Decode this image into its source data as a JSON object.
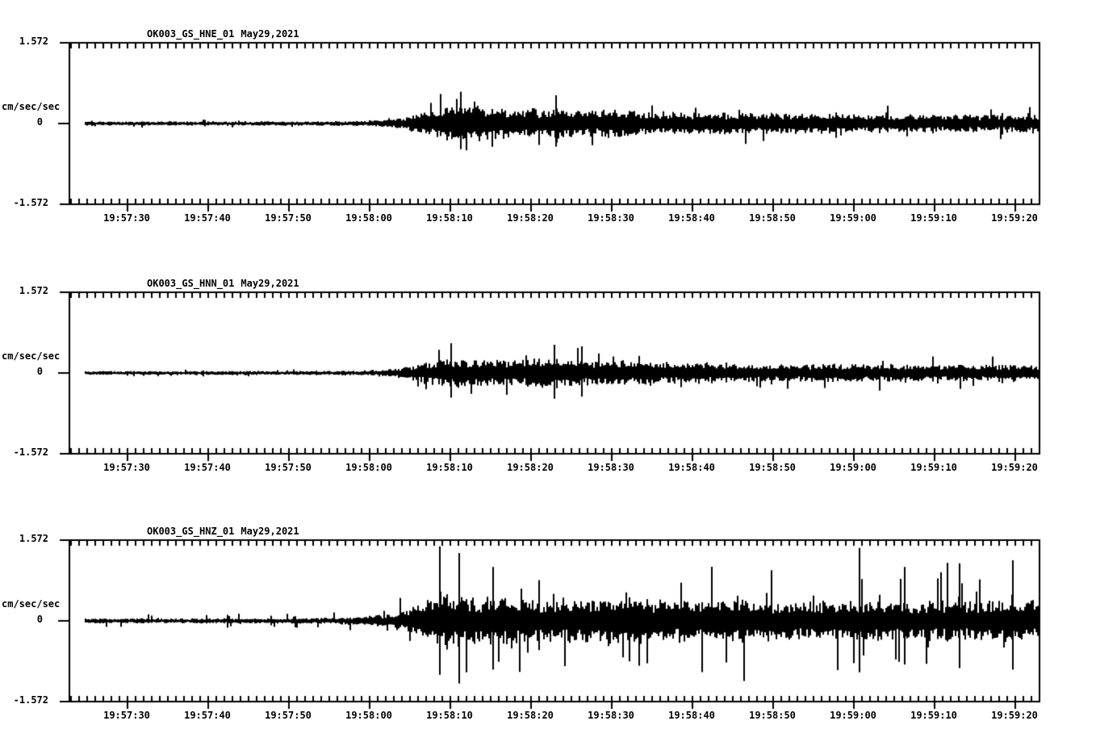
{
  "page": {
    "background": "#ffffff",
    "trace_color": "#000000",
    "axis_color": "#000000"
  },
  "chart_data": [
    {
      "type": "line",
      "kind": "seismogram",
      "title": "OK003_GS_HNE_01",
      "date": "May29,2021",
      "ylabel": "cm/sec/sec",
      "y_tick_labels": [
        "1.572",
        "0",
        "-1.572"
      ],
      "ylim": [
        -1.572,
        1.572
      ],
      "x_tick_labels": [
        "19:57:30",
        "19:57:40",
        "19:57:50",
        "19:58:00",
        "19:58:10",
        "19:58:20",
        "19:58:30",
        "19:58:40",
        "19:58:50",
        "19:59:00",
        "19:59:10",
        "19:59:20"
      ],
      "x_tick_interval_seconds": 10,
      "x_minor_tick_seconds": 1,
      "time_window": {
        "start": "19:57:23",
        "end": "19:59:23"
      },
      "seed": 101,
      "spike_ratio": 2.6,
      "spike_prob": 0.055,
      "envelope_body_amp": [
        [
          2,
          0.03
        ],
        [
          20,
          0.03
        ],
        [
          32,
          0.032
        ],
        [
          36,
          0.036
        ],
        [
          39,
          0.05
        ],
        [
          41,
          0.08
        ],
        [
          43,
          0.14
        ],
        [
          45,
          0.2
        ],
        [
          47,
          0.25
        ],
        [
          49,
          0.26
        ],
        [
          52,
          0.23
        ],
        [
          55,
          0.19
        ],
        [
          58,
          0.2
        ],
        [
          60,
          0.22
        ],
        [
          62,
          0.2
        ],
        [
          64,
          0.18
        ],
        [
          66,
          0.19
        ],
        [
          68,
          0.2
        ],
        [
          71,
          0.17
        ],
        [
          74,
          0.16
        ],
        [
          78,
          0.155
        ],
        [
          82,
          0.15
        ],
        [
          88,
          0.145
        ],
        [
          94,
          0.14
        ],
        [
          100,
          0.135
        ],
        [
          106,
          0.13
        ],
        [
          112,
          0.125
        ],
        [
          120.3,
          0.125
        ]
      ],
      "notable_peaks": [
        {
          "t": 48.5,
          "up": 0.62,
          "down": 0.5
        },
        {
          "t": 60.2,
          "up": 0.55,
          "down": 0.45
        }
      ]
    },
    {
      "type": "line",
      "kind": "seismogram",
      "title": "OK003_GS_HNN_01",
      "date": "May29,2021",
      "ylabel": "cm/sec/sec",
      "y_tick_labels": [
        "1.572",
        "0",
        "-1.572"
      ],
      "ylim": [
        -1.572,
        1.572
      ],
      "x_tick_labels": [
        "19:57:30",
        "19:57:40",
        "19:57:50",
        "19:58:00",
        "19:58:10",
        "19:58:20",
        "19:58:30",
        "19:58:40",
        "19:58:50",
        "19:59:00",
        "19:59:10",
        "19:59:20"
      ],
      "x_tick_interval_seconds": 10,
      "x_minor_tick_seconds": 1,
      "time_window": {
        "start": "19:57:23",
        "end": "19:59:23"
      },
      "seed": 202,
      "spike_ratio": 2.5,
      "spike_prob": 0.05,
      "envelope_body_amp": [
        [
          2,
          0.026
        ],
        [
          20,
          0.027
        ],
        [
          32,
          0.03
        ],
        [
          36,
          0.034
        ],
        [
          39,
          0.045
        ],
        [
          41,
          0.07
        ],
        [
          43,
          0.12
        ],
        [
          45,
          0.17
        ],
        [
          47,
          0.2
        ],
        [
          50,
          0.21
        ],
        [
          53,
          0.19
        ],
        [
          56,
          0.18
        ],
        [
          59,
          0.21
        ],
        [
          62,
          0.2
        ],
        [
          65,
          0.18
        ],
        [
          68,
          0.19
        ],
        [
          71,
          0.18
        ],
        [
          75,
          0.16
        ],
        [
          80,
          0.14
        ],
        [
          85,
          0.13
        ],
        [
          90,
          0.125
        ],
        [
          95,
          0.13
        ],
        [
          100,
          0.125
        ],
        [
          106,
          0.12
        ],
        [
          112,
          0.12
        ],
        [
          120.3,
          0.12
        ]
      ],
      "notable_peaks": [
        {
          "t": 47.2,
          "up": 0.58,
          "down": 0.48
        },
        {
          "t": 60.0,
          "up": 0.55,
          "down": 0.5
        },
        {
          "t": 63.5,
          "up": 0.52,
          "down": 0.46
        }
      ]
    },
    {
      "type": "line",
      "kind": "seismogram",
      "title": "OK003_GS_HNZ_01",
      "date": "May29,2021",
      "ylabel": "cm/sec/sec",
      "y_tick_labels": [
        "1.572",
        "0",
        "-1.572"
      ],
      "ylim": [
        -1.572,
        1.572
      ],
      "x_tick_labels": [
        "19:57:30",
        "19:57:40",
        "19:57:50",
        "19:58:00",
        "19:58:10",
        "19:58:20",
        "19:58:30",
        "19:58:40",
        "19:58:50",
        "19:59:00",
        "19:59:10",
        "19:59:20"
      ],
      "x_tick_interval_seconds": 10,
      "x_minor_tick_seconds": 1,
      "time_window": {
        "start": "19:57:23",
        "end": "19:59:23"
      },
      "seed": 303,
      "spike_ratio": 3.6,
      "spike_prob": 0.085,
      "envelope_body_amp": [
        [
          2,
          0.034
        ],
        [
          20,
          0.035
        ],
        [
          30,
          0.04
        ],
        [
          34,
          0.05
        ],
        [
          37,
          0.065
        ],
        [
          39,
          0.09
        ],
        [
          41,
          0.13
        ],
        [
          43,
          0.22
        ],
        [
          44.5,
          0.3
        ],
        [
          46,
          0.4
        ],
        [
          48,
          0.38
        ],
        [
          50,
          0.34
        ],
        [
          53,
          0.32
        ],
        [
          56,
          0.33
        ],
        [
          59,
          0.3
        ],
        [
          62,
          0.3
        ],
        [
          65,
          0.31
        ],
        [
          68,
          0.32
        ],
        [
          71,
          0.3
        ],
        [
          74,
          0.3
        ],
        [
          77,
          0.31
        ],
        [
          80,
          0.29
        ],
        [
          84,
          0.3
        ],
        [
          88,
          0.28
        ],
        [
          92,
          0.27
        ],
        [
          96,
          0.28
        ],
        [
          100,
          0.28
        ],
        [
          104,
          0.26
        ],
        [
          108,
          0.28
        ],
        [
          112,
          0.27
        ],
        [
          116,
          0.28
        ],
        [
          120.3,
          0.28
        ]
      ],
      "notable_peaks": [
        {
          "t": 45.8,
          "up": 1.45,
          "down": 1.05
        },
        {
          "t": 48.2,
          "up": 1.32,
          "down": 1.22
        },
        {
          "t": 52.5,
          "up": 1.05,
          "down": 0.95
        },
        {
          "t": 97.8,
          "up": 1.42,
          "down": 1.0
        },
        {
          "t": 103.5,
          "up": 1.05,
          "down": 0.85
        },
        {
          "t": 110.2,
          "up": 1.12,
          "down": 0.92
        },
        {
          "t": 116.8,
          "up": 1.18,
          "down": 0.95
        }
      ]
    }
  ]
}
